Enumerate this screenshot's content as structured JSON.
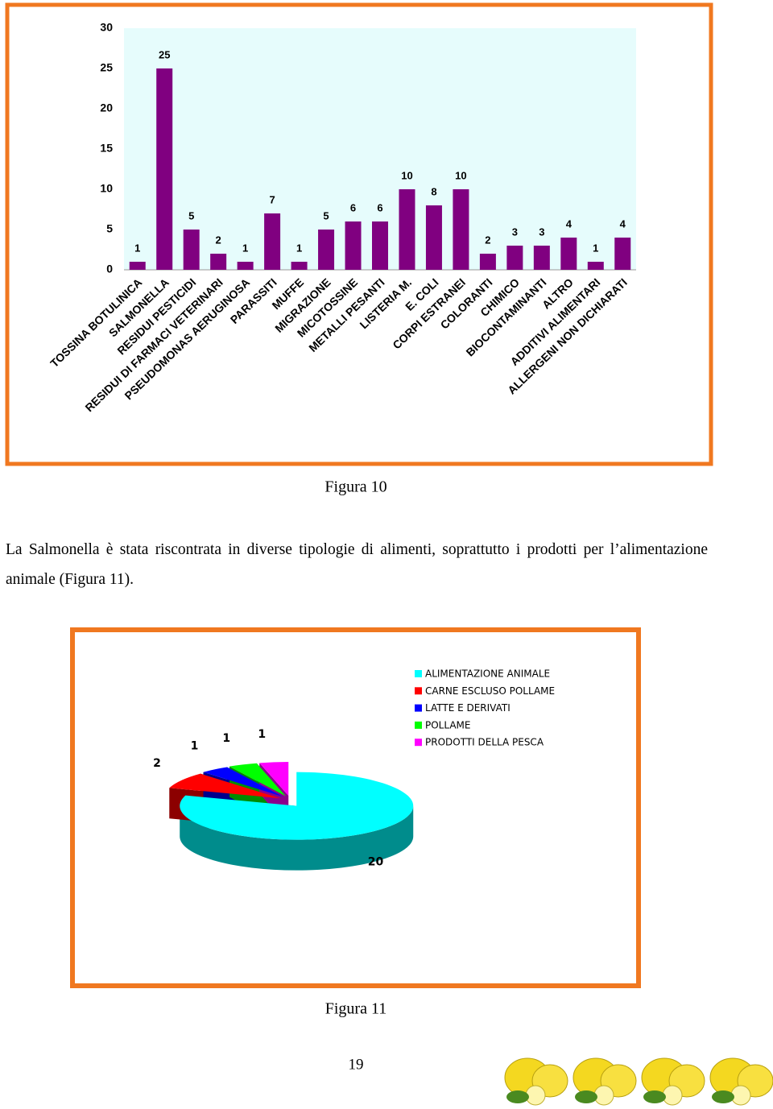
{
  "chart_data": [
    {
      "type": "bar",
      "categories": [
        "TOSSINA BOTULINICA",
        "SALMONELLA",
        "RESIDUI PESTICIDI",
        "RESIDUI DI FARMACI VETERINARI",
        "PSEUDOMONAS AERUGINOSA",
        "PARASSITI",
        "MUFFE",
        "MIGRAZIONE",
        "MICOTOSSINE",
        "METALLI PESANTI",
        "LISTERIA M.",
        "E. COLI",
        "CORPI ESTRANEI",
        "COLORANTI",
        "CHIMICO",
        "BIOCONTAMINANTI",
        "ALTRO",
        "ADDITIVI ALIMENTARI",
        "ALLERGENI NON DICHIARATI"
      ],
      "values": [
        1,
        25,
        5,
        2,
        1,
        7,
        1,
        5,
        6,
        6,
        10,
        8,
        10,
        2,
        3,
        3,
        4,
        1,
        4
      ],
      "color": "#800080",
      "background": "#e6fcfc",
      "ylim": [
        0,
        30
      ],
      "yticks": [
        0,
        5,
        10,
        15,
        20,
        25,
        30
      ],
      "grid": false
    },
    {
      "type": "pie",
      "categories": [
        "ALIMENTAZIONE ANIMALE",
        "CARNE ESCLUSO POLLAME",
        "LATTE E DERIVATI",
        "POLLAME",
        "PRODOTTI DELLA PESCA"
      ],
      "values": [
        20,
        2,
        1,
        1,
        1
      ],
      "colors": [
        "#00ffff",
        "#ff0000",
        "#0000ff",
        "#00ff00",
        "#ff00ff"
      ],
      "legend": "right"
    }
  ],
  "captions": [
    "Figura 10",
    "Figura 11"
  ],
  "paragraph": "La Salmonella è stata riscontrata in diverse tipologie di alimenti, soprattutto i prodotti per l’alimentazione animale (Figura 11).",
  "page_number": "19"
}
